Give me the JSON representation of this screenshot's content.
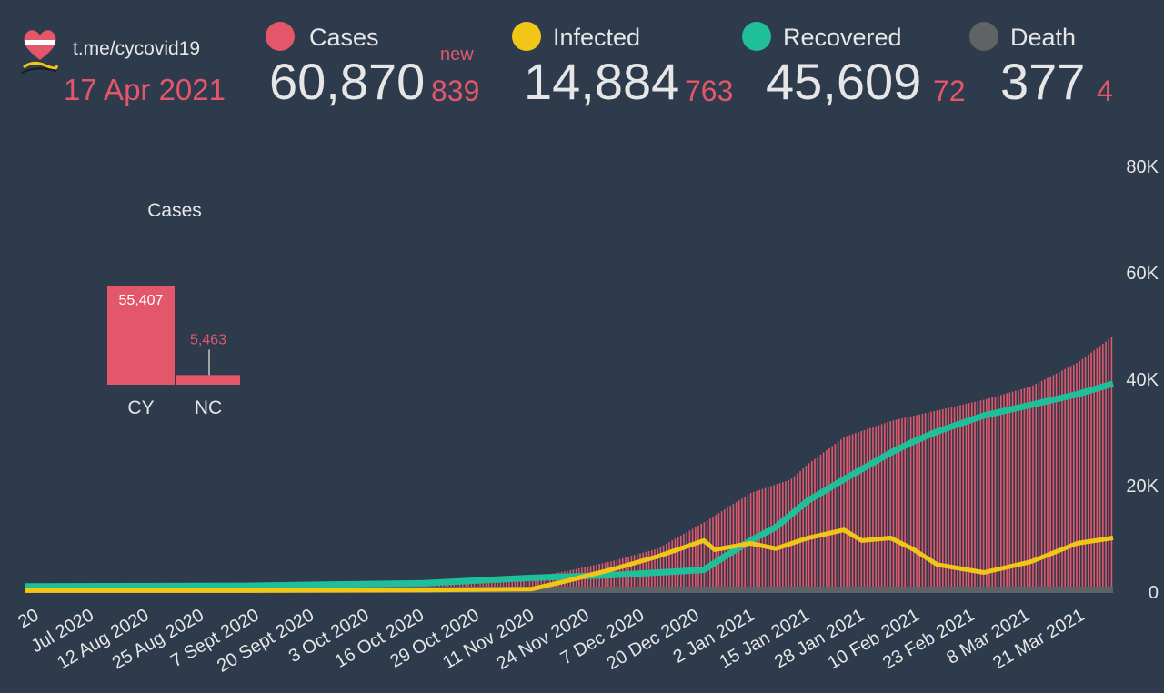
{
  "header": {
    "channel": "t.me/cycovid19",
    "date": "17 Apr 2021",
    "new_label": "new"
  },
  "stats": [
    {
      "label": "Cases",
      "value": "60,870",
      "new": "839",
      "color": "#e4566a"
    },
    {
      "label": "Infected",
      "value": "14,884",
      "new": "763",
      "color": "#f2c617"
    },
    {
      "label": "Recovered",
      "value": "45,609",
      "new": "72",
      "color": "#1fbf9a"
    },
    {
      "label": "Death",
      "value": "377",
      "new": "4",
      "color": "#5f6366"
    }
  ],
  "chart_data": [
    {
      "type": "bar",
      "title": "Cases",
      "categories": [
        "CY",
        "NC"
      ],
      "values": [
        55407,
        5463
      ],
      "value_labels": [
        "55,407",
        "5,463"
      ],
      "color": "#e4566a"
    },
    {
      "type": "line",
      "title": "",
      "x_tick_labels": [
        "20",
        "Jul 2020",
        "12 Aug 2020",
        "25 Aug 2020",
        "7 Sept 2020",
        "20 Sept 2020",
        "3 Oct 2020",
        "16 Oct 2020",
        "29 Oct 2020",
        "11 Nov 2020",
        "24 Nov 2020",
        "7 Dec 2020",
        "20 Dec 2020",
        "2 Jan 2021",
        "15 Jan 2021",
        "28 Jan 2021",
        "10 Feb 2021",
        "23 Feb 2021",
        "8 Mar 2021",
        "21 Mar 2021"
      ],
      "y_tick_labels": [
        "0",
        "20K",
        "40K",
        "60K",
        "80K"
      ],
      "ylim": [
        0,
        80000
      ],
      "grid": false,
      "series": [
        {
          "name": "Cases",
          "style": "bars",
          "color": "#e4566a",
          "x": [
            "2020-06-01",
            "2020-07-15",
            "2020-08-25",
            "2020-09-20",
            "2020-10-10",
            "2020-10-20",
            "2020-10-29",
            "2020-11-11",
            "2020-11-24",
            "2020-12-07",
            "2020-12-20",
            "2020-12-31",
            "2021-01-05",
            "2021-01-15",
            "2021-01-28",
            "2021-02-10",
            "2021-02-23",
            "2021-03-08",
            "2021-03-21",
            "2021-03-31"
          ],
          "values": [
            1000,
            1100,
            1300,
            1600,
            2000,
            2600,
            3700,
            5600,
            8000,
            13000,
            18500,
            21000,
            24000,
            29000,
            32000,
            34000,
            36000,
            38500,
            43000,
            48000
          ]
        },
        {
          "name": "Infected",
          "style": "line",
          "color": "#f2c617",
          "x": [
            "2020-06-01",
            "2020-08-01",
            "2020-09-20",
            "2020-10-20",
            "2020-10-29",
            "2020-11-11",
            "2020-11-24",
            "2020-12-07",
            "2020-12-10",
            "2020-12-20",
            "2020-12-27",
            "2021-01-05",
            "2021-01-15",
            "2021-01-20",
            "2021-01-28",
            "2021-02-03",
            "2021-02-10",
            "2021-02-23",
            "2021-03-08",
            "2021-03-21",
            "2021-03-31"
          ],
          "values": [
            100,
            100,
            200,
            400,
            1800,
            4000,
            6500,
            9500,
            7800,
            9000,
            8000,
            10000,
            11500,
            9500,
            10000,
            8000,
            5000,
            3500,
            5500,
            9000,
            10000
          ]
        },
        {
          "name": "Recovered",
          "style": "line",
          "color": "#1fbf9a",
          "x": [
            "2020-06-01",
            "2020-08-01",
            "2020-09-20",
            "2020-10-20",
            "2020-11-11",
            "2020-12-07",
            "2020-12-14",
            "2020-12-20",
            "2020-12-27",
            "2021-01-05",
            "2021-01-15",
            "2021-01-28",
            "2021-02-03",
            "2021-02-10",
            "2021-02-23",
            "2021-03-08",
            "2021-03-21",
            "2021-03-31"
          ],
          "values": [
            900,
            1000,
            1500,
            2500,
            3000,
            4000,
            7000,
            9500,
            12000,
            17000,
            21000,
            26000,
            28000,
            30000,
            33000,
            35000,
            37000,
            39000
          ]
        },
        {
          "name": "Death",
          "style": "line",
          "color": "#5f6366",
          "x": [
            "2020-06-01",
            "2021-03-31"
          ],
          "values": [
            100,
            377
          ]
        }
      ]
    }
  ]
}
